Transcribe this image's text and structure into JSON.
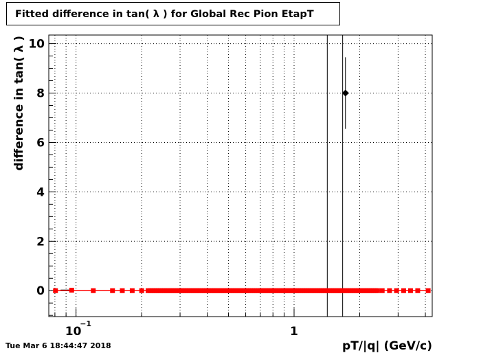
{
  "title": "Fitted difference in tan( λ ) for Global Rec Pion EtapT",
  "timestamp": "Tue Mar  6 18:44:47 2018",
  "chart_data": {
    "type": "scatter",
    "xlabel": "pT/|q| (GeV/c)",
    "ylabel": "difference in tan( λ )",
    "x_scale": "log",
    "xlim": [
      0.075,
      4.3
    ],
    "ylim": [
      -1.05,
      10.35
    ],
    "y_ticks": [
      0,
      2,
      4,
      6,
      8,
      10
    ],
    "x_tick_labels": [
      {
        "value": 0.1,
        "base": "10",
        "exp": "−1"
      },
      {
        "value": 1,
        "base": "1",
        "exp": ""
      }
    ],
    "grid": true,
    "colors": {
      "series": "#ff0000",
      "outlier": "#000000",
      "axis": "#000000",
      "grid": "#000000"
    },
    "series": [
      {
        "color": "#ff0000",
        "marker": "square",
        "points": [
          [
            0.0805,
            0.0
          ],
          [
            0.0955,
            0.02
          ],
          [
            0.12,
            0.0
          ],
          [
            0.147,
            0.0
          ],
          [
            0.163,
            0.0
          ],
          [
            0.181,
            0.0
          ],
          [
            0.2,
            0.0
          ],
          [
            0.214,
            0.0
          ],
          [
            0.219,
            0.0
          ],
          [
            0.224,
            0.0
          ],
          [
            0.229,
            0.0
          ],
          [
            0.234,
            0.0
          ],
          [
            0.239,
            0.0
          ],
          [
            0.244,
            0.0
          ],
          [
            0.25,
            0.0
          ],
          [
            0.255,
            0.0
          ],
          [
            0.261,
            0.0
          ],
          [
            0.267,
            0.0
          ],
          [
            0.273,
            0.0
          ],
          [
            0.279,
            0.0
          ],
          [
            0.285,
            0.0
          ],
          [
            0.291,
            0.0
          ],
          [
            0.298,
            0.0
          ],
          [
            0.304,
            0.0
          ],
          [
            0.311,
            0.0
          ],
          [
            0.318,
            0.0
          ],
          [
            0.325,
            0.0
          ],
          [
            0.332,
            0.0
          ],
          [
            0.34,
            0.0
          ],
          [
            0.347,
            0.0
          ],
          [
            0.355,
            0.0
          ],
          [
            0.363,
            0.0
          ],
          [
            0.371,
            0.0
          ],
          [
            0.38,
            0.0
          ],
          [
            0.388,
            0.0
          ],
          [
            0.397,
            0.0
          ],
          [
            0.405,
            0.0
          ],
          [
            0.415,
            0.0
          ],
          [
            0.424,
            0.0
          ],
          [
            0.433,
            0.0
          ],
          [
            0.443,
            0.0
          ],
          [
            0.453,
            0.0
          ],
          [
            0.463,
            0.0
          ],
          [
            0.473,
            0.0
          ],
          [
            0.484,
            0.0
          ],
          [
            0.495,
            0.0
          ],
          [
            0.506,
            0.0
          ],
          [
            0.517,
            0.0
          ],
          [
            0.529,
            0.0
          ],
          [
            0.54,
            0.0
          ],
          [
            0.553,
            0.0
          ],
          [
            0.565,
            0.0
          ],
          [
            0.578,
            0.0
          ],
          [
            0.59,
            0.0
          ],
          [
            0.604,
            0.0
          ],
          [
            0.617,
            0.0
          ],
          [
            0.631,
            0.0
          ],
          [
            0.645,
            0.0
          ],
          [
            0.659,
            0.0
          ],
          [
            0.674,
            0.0
          ],
          [
            0.689,
            0.0
          ],
          [
            0.704,
            0.0
          ],
          [
            0.72,
            0.0
          ],
          [
            0.736,
            0.0
          ],
          [
            0.752,
            0.0
          ],
          [
            0.769,
            0.0
          ],
          [
            0.786,
            0.0
          ],
          [
            0.804,
            0.0
          ],
          [
            0.822,
            0.0
          ],
          [
            0.84,
            0.0
          ],
          [
            0.859,
            0.0
          ],
          [
            0.878,
            0.0
          ],
          [
            0.897,
            0.0
          ],
          [
            0.917,
            0.0
          ],
          [
            0.938,
            0.0
          ],
          [
            0.958,
            0.0
          ],
          [
            0.98,
            0.0
          ],
          [
            1.0,
            0.0
          ],
          [
            1.024,
            0.0
          ],
          [
            1.047,
            0.0
          ],
          [
            1.07,
            0.0
          ],
          [
            1.094,
            0.0
          ],
          [
            1.118,
            0.0
          ],
          [
            1.143,
            0.0
          ],
          [
            1.169,
            0.0
          ],
          [
            1.195,
            0.0
          ],
          [
            1.221,
            0.0
          ],
          [
            1.248,
            0.0
          ],
          [
            1.276,
            0.0
          ],
          [
            1.305,
            0.0
          ],
          [
            1.334,
            0.0
          ],
          [
            1.363,
            0.0
          ],
          [
            1.393,
            0.0
          ],
          [
            1.424,
            0.0
          ],
          [
            1.456,
            0.0
          ],
          [
            1.488,
            0.0
          ],
          [
            1.521,
            0.0
          ],
          [
            1.555,
            0.0
          ],
          [
            1.59,
            0.0
          ],
          [
            1.625,
            0.0
          ],
          [
            1.661,
            0.0
          ],
          [
            1.698,
            0.0
          ],
          [
            1.736,
            0.0
          ],
          [
            1.774,
            0.0
          ],
          [
            1.814,
            0.0
          ],
          [
            1.854,
            0.0
          ],
          [
            1.895,
            0.0
          ],
          [
            1.937,
            0.0
          ],
          [
            1.98,
            0.0
          ],
          [
            2.024,
            0.0
          ],
          [
            2.069,
            0.0
          ],
          [
            2.115,
            0.0
          ],
          [
            2.162,
            0.0
          ],
          [
            2.21,
            0.0
          ],
          [
            2.259,
            0.0
          ],
          [
            2.309,
            0.0
          ],
          [
            2.36,
            0.0
          ],
          [
            2.413,
            0.0
          ],
          [
            2.536,
            0.0
          ],
          [
            2.74,
            0.0
          ],
          [
            2.95,
            0.0
          ],
          [
            3.18,
            0.0
          ],
          [
            3.42,
            0.0
          ],
          [
            3.69,
            0.0
          ],
          [
            4.12,
            0.0
          ]
        ]
      },
      {
        "color": "#000000",
        "marker": "diamond",
        "points": [
          [
            1.72,
            8.0
          ]
        ],
        "y_error": [
          1.45
        ]
      }
    ],
    "vertical_lines": [
      1.42,
      1.67
    ],
    "short_segments": [
      [
        0.085,
        0.095
      ]
    ]
  }
}
